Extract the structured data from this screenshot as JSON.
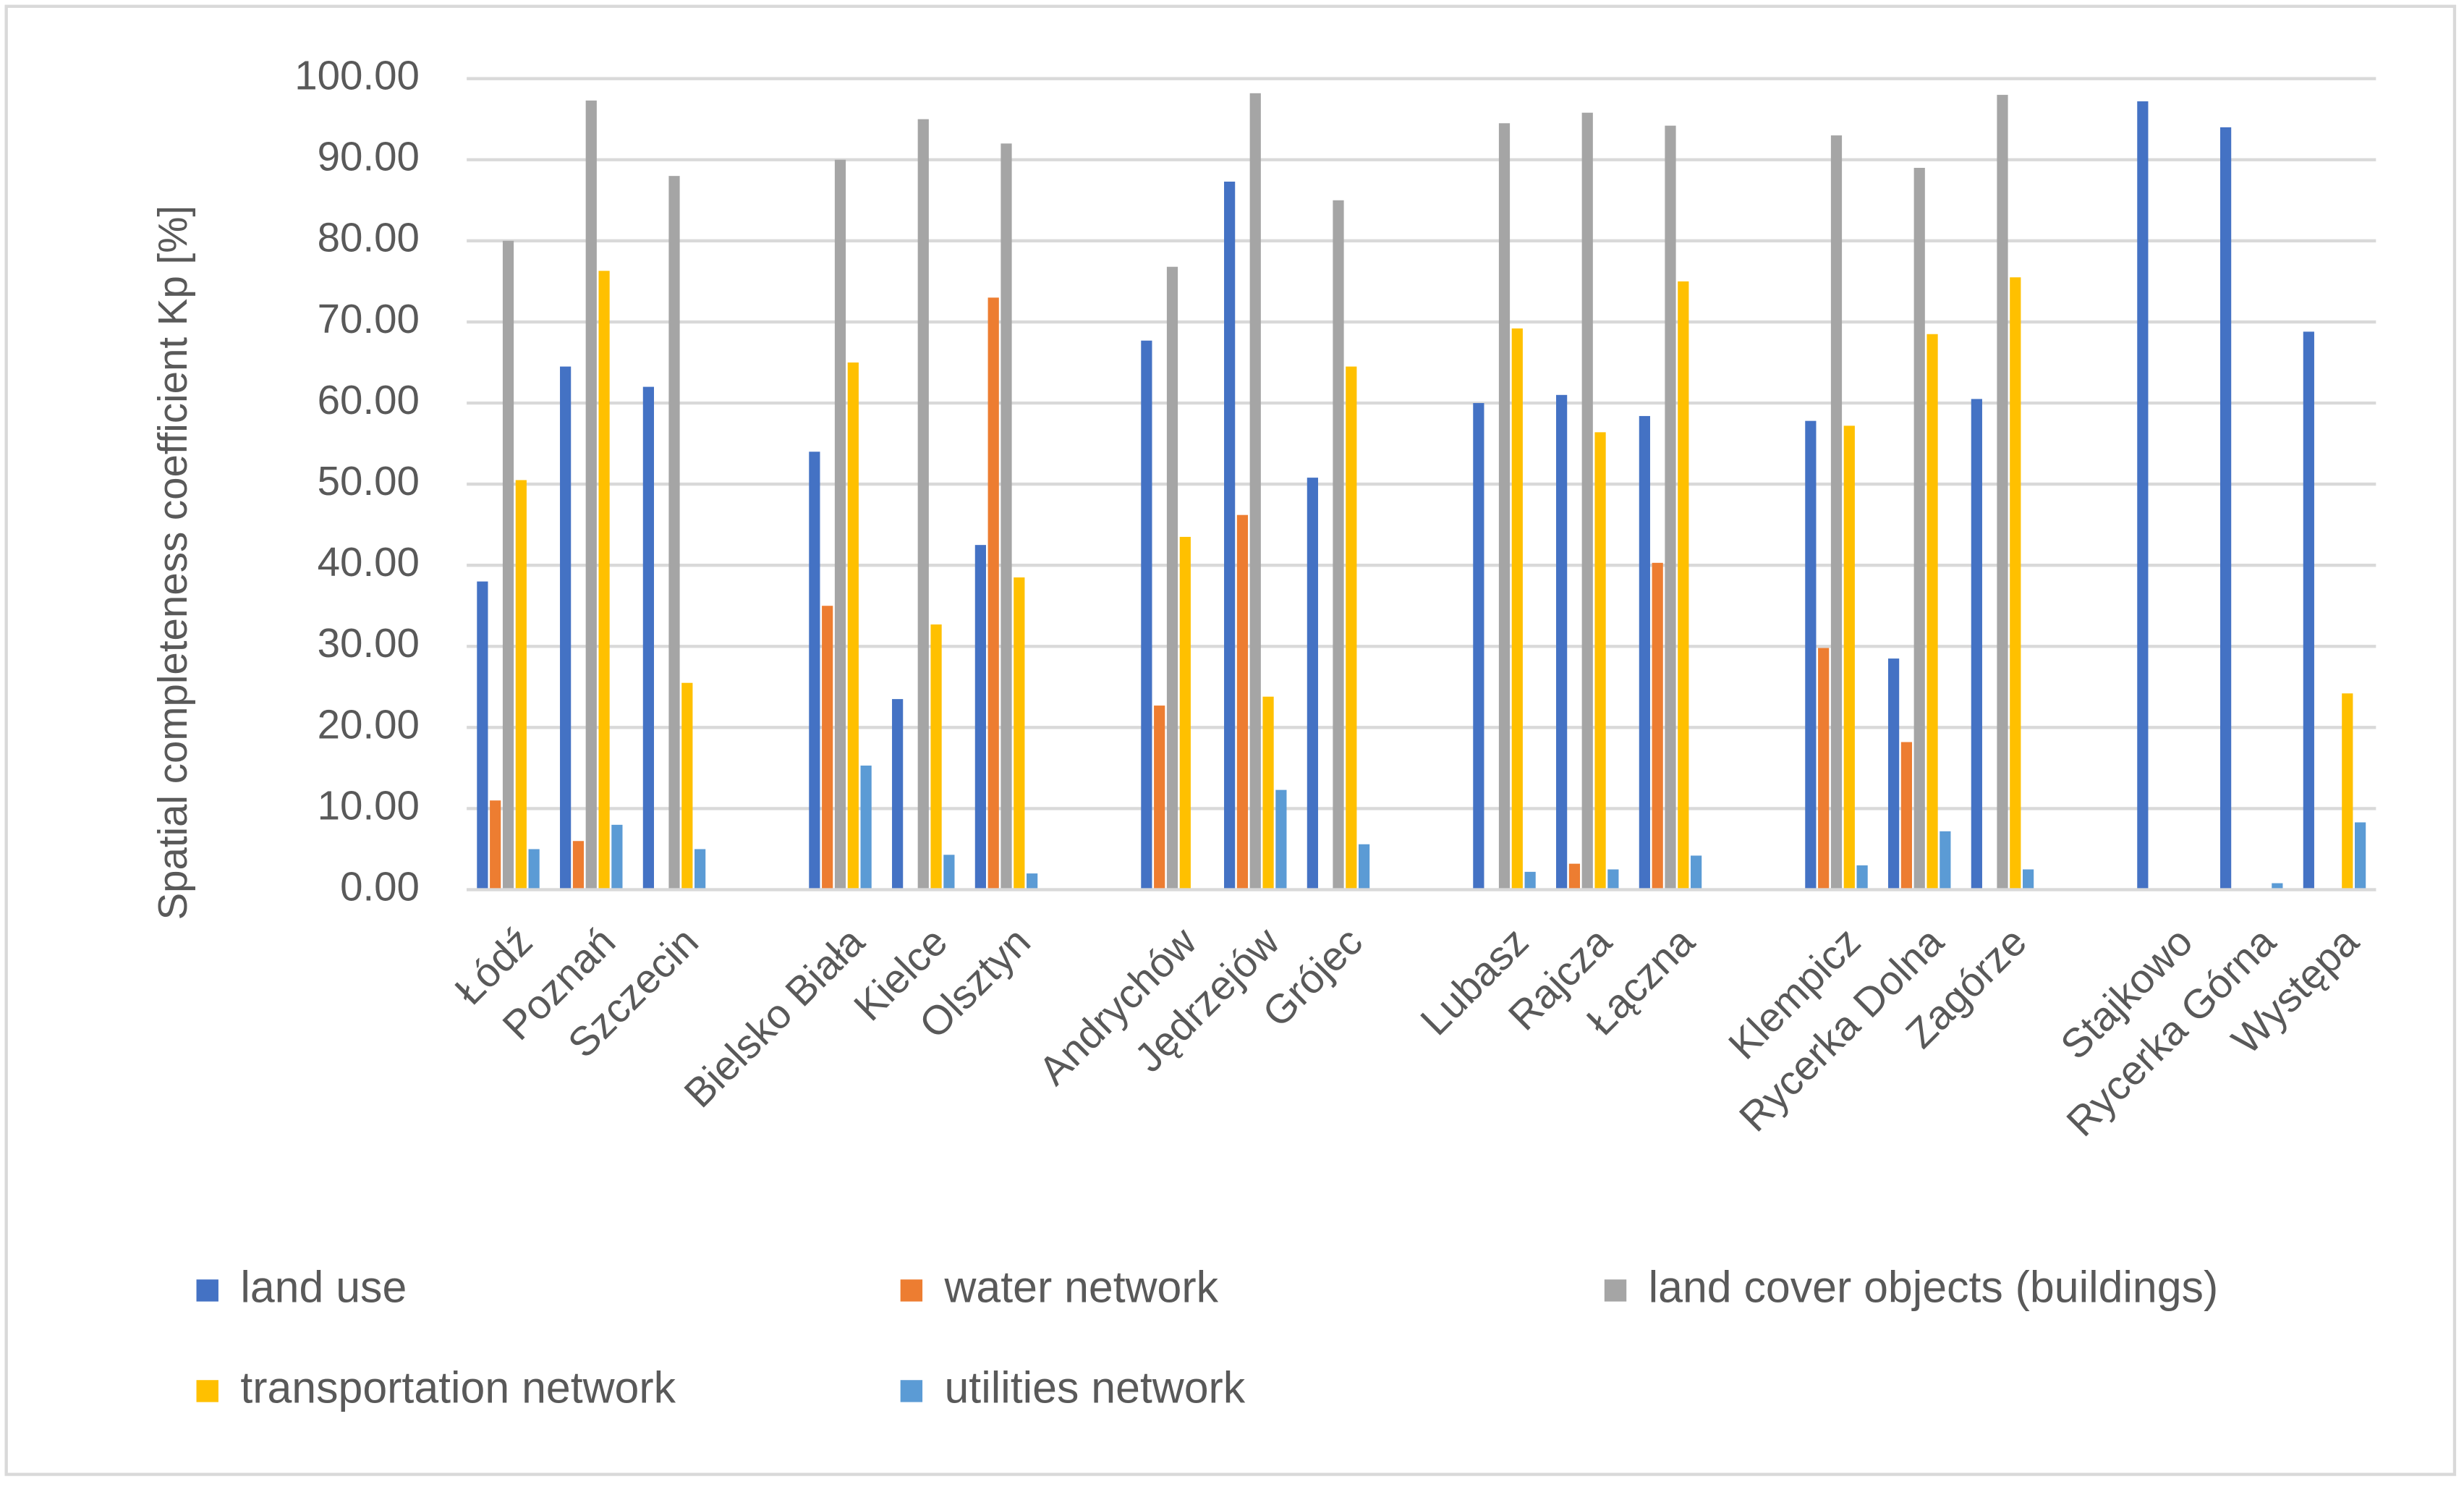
{
  "chart_data": {
    "type": "bar",
    "y_label": "Spatial completeness coefficient Kp [%]",
    "categories": [
      "Łódź",
      "Poznań",
      "Szczecin",
      null,
      "Bielsko Biała",
      "Kielce",
      "Olsztyn",
      null,
      "Andrychów",
      "Jędrzejów",
      "Grójec",
      null,
      "Lubasz",
      "Rajcza",
      "Łączna",
      null,
      "Klempicz",
      "Rycerka Dolna",
      "Zagórze",
      null,
      "Stajkowo",
      "Rycerka Górna",
      "Występa"
    ],
    "series": [
      {
        "name": "land use",
        "color": "#4472c4",
        "values": [
          38,
          64.5,
          62,
          null,
          54,
          23.5,
          42.5,
          null,
          67.7,
          87.3,
          50.8,
          null,
          60,
          61,
          58.4,
          null,
          57.8,
          28.5,
          60.5,
          null,
          97.2,
          94,
          68.8
        ]
      },
      {
        "name": "water network",
        "color": "#ed7d31",
        "values": [
          11,
          6,
          null,
          null,
          35,
          null,
          73,
          null,
          22.7,
          46.2,
          null,
          null,
          null,
          3.2,
          40.3,
          null,
          29.8,
          18.2,
          null,
          null,
          null,
          null,
          null
        ]
      },
      {
        "name": "land cover objects (buildings)",
        "color": "#a5a5a5",
        "values": [
          80,
          97.3,
          88,
          null,
          90,
          95,
          92,
          null,
          76.8,
          98.2,
          85,
          null,
          94.5,
          95.8,
          94.2,
          null,
          93,
          89,
          98,
          null,
          null,
          null,
          null
        ]
      },
      {
        "name": "transportation network",
        "color": "#ffc000",
        "values": [
          50.5,
          76.3,
          25.5,
          null,
          65,
          32.7,
          38.5,
          null,
          43.5,
          23.8,
          64.5,
          null,
          69.2,
          56.4,
          75,
          null,
          57.2,
          68.5,
          75.5,
          null,
          null,
          null,
          24.2
        ]
      },
      {
        "name": "utilities network",
        "color": "#5b9bd5",
        "values": [
          5,
          8,
          5,
          null,
          15.3,
          4.3,
          2,
          null,
          null,
          12.3,
          5.6,
          null,
          2.2,
          2.5,
          4.2,
          null,
          3,
          7.2,
          2.5,
          null,
          null,
          0.8,
          8.3
        ]
      }
    ],
    "ylim": [
      0,
      100
    ],
    "yticks": [
      {
        "value": 0,
        "label": "0.00"
      },
      {
        "value": 10,
        "label": "10.00"
      },
      {
        "value": 20,
        "label": "20.00"
      },
      {
        "value": 30,
        "label": "30.00"
      },
      {
        "value": 40,
        "label": "40.00"
      },
      {
        "value": 50,
        "label": "50.00"
      },
      {
        "value": 60,
        "label": "60.00"
      },
      {
        "value": 70,
        "label": "70.00"
      },
      {
        "value": 80,
        "label": "80.00"
      },
      {
        "value": 90,
        "label": "90.00"
      },
      {
        "value": 100,
        "label": "100.00"
      }
    ],
    "grid": true,
    "legend": "bottom"
  }
}
